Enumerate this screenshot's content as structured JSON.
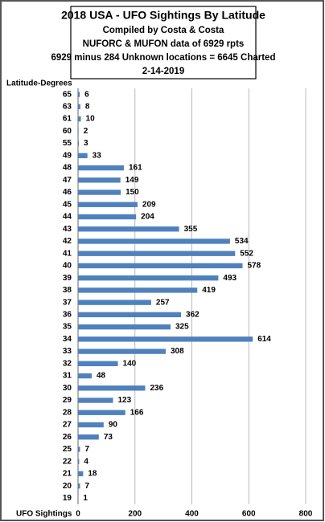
{
  "chart_data": {
    "type": "barh",
    "title": "2018 USA - UFO Sightings By Latitude",
    "subtitle": [
      "Compiled by Costa & Costa",
      "NUFORC & MUFON data of 6929 rpts",
      "6929 minus 284 Unknown locations = 6645 Charted",
      "2-14-2019"
    ],
    "ylabel": "Latitude-Degrees",
    "xlabel": "UFO Sightings",
    "categories": [
      "65",
      "63",
      "61",
      "60",
      "55",
      "49",
      "48",
      "47",
      "46",
      "45",
      "44",
      "43",
      "42",
      "41",
      "40",
      "39",
      "38",
      "37",
      "36",
      "35",
      "34",
      "33",
      "32",
      "31",
      "30",
      "29",
      "28",
      "27",
      "26",
      "25",
      "22",
      "21",
      "20",
      "19"
    ],
    "values": [
      6,
      8,
      10,
      2,
      3,
      33,
      161,
      149,
      150,
      209,
      204,
      355,
      534,
      552,
      578,
      493,
      419,
      257,
      362,
      325,
      614,
      308,
      140,
      48,
      236,
      123,
      166,
      90,
      73,
      7,
      4,
      18,
      7,
      1
    ],
    "color": "#4f81bd",
    "xlim": [
      0,
      800
    ],
    "xticks": [
      0,
      200,
      400,
      600,
      800
    ],
    "grid": true
  }
}
